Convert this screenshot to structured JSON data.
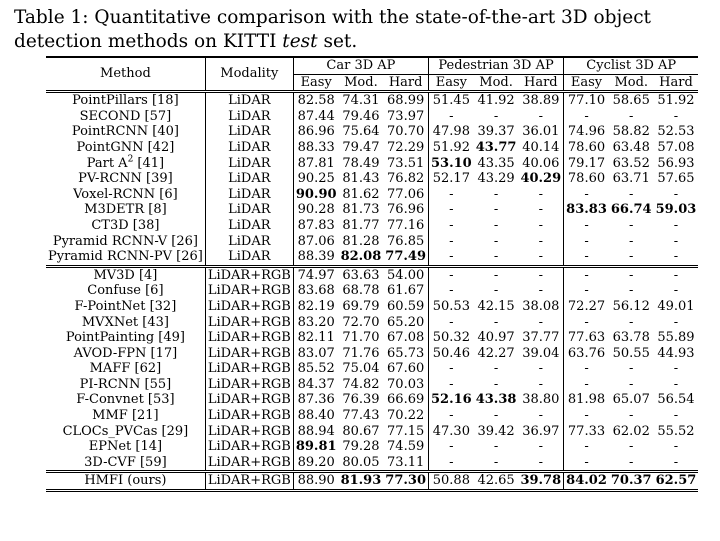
{
  "caption": {
    "prefix": "Table 1: Quantitative comparison with the state-of-the-art 3D object detection methods on KITTI ",
    "italic": "test",
    "suffix": " set."
  },
  "headers": {
    "method": "Method",
    "modality": "Modality",
    "car": "Car 3D AP",
    "pedestrian": "Pedestrian 3D AP",
    "cyclist": "Cyclist 3D AP",
    "sub": [
      "Easy",
      "Mod.",
      "Hard",
      "Easy",
      "Mod.",
      "Hard",
      "Easy",
      "Mod.",
      "Hard"
    ]
  },
  "groups": [
    {
      "rows": [
        {
          "method": "PointPillars [18]",
          "modality": "LiDAR",
          "values": [
            "82.58",
            "74.31",
            "68.99",
            "51.45",
            "41.92",
            "38.89",
            "77.10",
            "58.65",
            "51.92"
          ],
          "bold": []
        },
        {
          "method": "SECOND [57]",
          "modality": "LiDAR",
          "values": [
            "87.44",
            "79.46",
            "73.97",
            "-",
            "-",
            "-",
            "-",
            "-",
            "-"
          ],
          "bold": []
        },
        {
          "method": "PointRCNN [40]",
          "modality": "LiDAR",
          "values": [
            "86.96",
            "75.64",
            "70.70",
            "47.98",
            "39.37",
            "36.01",
            "74.96",
            "58.82",
            "52.53"
          ],
          "bold": []
        },
        {
          "method": "PointGNN [42]",
          "modality": "LiDAR",
          "values": [
            "88.33",
            "79.47",
            "72.29",
            "51.92",
            "43.77",
            "40.14",
            "78.60",
            "63.48",
            "57.08"
          ],
          "bold": [
            4
          ]
        },
        {
          "method": "Part A",
          "sup": "2",
          "method_suffix": " [41]",
          "modality": "LiDAR",
          "values": [
            "87.81",
            "78.49",
            "73.51",
            "53.10",
            "43.35",
            "40.06",
            "79.17",
            "63.52",
            "56.93"
          ],
          "bold": [
            3
          ]
        },
        {
          "method": "PV-RCNN [39]",
          "modality": "LiDAR",
          "values": [
            "90.25",
            "81.43",
            "76.82",
            "52.17",
            "43.29",
            "40.29",
            "78.60",
            "63.71",
            "57.65"
          ],
          "bold": [
            5
          ]
        },
        {
          "method": "Voxel-RCNN [6]",
          "modality": "LiDAR",
          "values": [
            "90.90",
            "81.62",
            "77.06",
            "-",
            "-",
            "-",
            "-",
            "-",
            "-"
          ],
          "bold": [
            0
          ]
        },
        {
          "method": "M3DETR [8]",
          "modality": "LiDAR",
          "values": [
            "90.28",
            "81.73",
            "76.96",
            "-",
            "-",
            "-",
            "83.83",
            "66.74",
            "59.03"
          ],
          "bold": [
            6,
            7,
            8
          ]
        },
        {
          "method": "CT3D [38]",
          "modality": "LiDAR",
          "values": [
            "87.83",
            "81.77",
            "77.16",
            "-",
            "-",
            "-",
            "-",
            "-",
            "-"
          ],
          "bold": []
        },
        {
          "method": "Pyramid RCNN-V [26]",
          "modality": "LiDAR",
          "values": [
            "87.06",
            "81.28",
            "76.85",
            "-",
            "-",
            "-",
            "-",
            "-",
            "-"
          ],
          "bold": []
        },
        {
          "method": "Pyramid RCNN-PV [26]",
          "modality": "LiDAR",
          "values": [
            "88.39",
            "82.08",
            "77.49",
            "-",
            "-",
            "-",
            "-",
            "-",
            "-"
          ],
          "bold": [
            1,
            2
          ]
        }
      ]
    },
    {
      "rows": [
        {
          "method": "MV3D [4]",
          "modality": "LiDAR+RGB",
          "values": [
            "74.97",
            "63.63",
            "54.00",
            "-",
            "-",
            "-",
            "-",
            "-",
            "-"
          ],
          "bold": []
        },
        {
          "method": "Confuse [6]",
          "modality": "LiDAR+RGB",
          "values": [
            "83.68",
            "68.78",
            "61.67",
            "-",
            "-",
            "-",
            "-",
            "-",
            "-"
          ],
          "bold": []
        },
        {
          "method": "F-PointNet [32]",
          "modality": "LiDAR+RGB",
          "values": [
            "82.19",
            "69.79",
            "60.59",
            "50.53",
            "42.15",
            "38.08",
            "72.27",
            "56.12",
            "49.01"
          ],
          "bold": []
        },
        {
          "method": "MVXNet [43]",
          "modality": "LiDAR+RGB",
          "values": [
            "83.20",
            "72.70",
            "65.20",
            "-",
            "-",
            "-",
            "-",
            "-",
            "-"
          ],
          "bold": []
        },
        {
          "method": "PointPainting [49]",
          "modality": "LiDAR+RGB",
          "values": [
            "82.11",
            "71.70",
            "67.08",
            "50.32",
            "40.97",
            "37.77",
            "77.63",
            "63.78",
            "55.89"
          ],
          "bold": []
        },
        {
          "method": "AVOD-FPN [17]",
          "modality": "LiDAR+RGB",
          "values": [
            "83.07",
            "71.76",
            "65.73",
            "50.46",
            "42.27",
            "39.04",
            "63.76",
            "50.55",
            "44.93"
          ],
          "bold": []
        },
        {
          "method": "MAFF [62]",
          "modality": "LiDAR+RGB",
          "values": [
            "85.52",
            "75.04",
            "67.60",
            "-",
            "-",
            "-",
            "-",
            "-",
            "-"
          ],
          "bold": []
        },
        {
          "method": "PI-RCNN [55]",
          "modality": "LiDAR+RGB",
          "values": [
            "84.37",
            "74.82",
            "70.03",
            "-",
            "-",
            "-",
            "-",
            "-",
            "-"
          ],
          "bold": []
        },
        {
          "method": "F-Convnet [53]",
          "modality": "LiDAR+RGB",
          "values": [
            "87.36",
            "76.39",
            "66.69",
            "52.16",
            "43.38",
            "38.80",
            "81.98",
            "65.07",
            "56.54"
          ],
          "bold": [
            3,
            4
          ]
        },
        {
          "method": "MMF [21]",
          "modality": "LiDAR+RGB",
          "values": [
            "88.40",
            "77.43",
            "70.22",
            "-",
            "-",
            "-",
            "-",
            "-",
            "-"
          ],
          "bold": []
        },
        {
          "method": "CLOCs_PVCas [29]",
          "modality": "LiDAR+RGB",
          "values": [
            "88.94",
            "80.67",
            "77.15",
            "47.30",
            "39.42",
            "36.97",
            "77.33",
            "62.02",
            "55.52"
          ],
          "bold": []
        },
        {
          "method": "EPNet [14]",
          "modality": "LiDAR+RGB",
          "values": [
            "89.81",
            "79.28",
            "74.59",
            "-",
            "-",
            "-",
            "-",
            "-",
            "-"
          ],
          "bold": [
            0
          ]
        },
        {
          "method": "3D-CVF [59]",
          "modality": "LiDAR+RGB",
          "values": [
            "89.20",
            "80.05",
            "73.11",
            "-",
            "-",
            "-",
            "-",
            "-",
            "-"
          ],
          "bold": []
        }
      ]
    }
  ],
  "ours": {
    "method": "HMFI (ours)",
    "modality": "LiDAR+RGB",
    "values": [
      "88.90",
      "81.93",
      "77.30",
      "50.88",
      "42.65",
      "39.78",
      "84.02",
      "70.37",
      "62.57"
    ],
    "bold": [
      1,
      2,
      5,
      6,
      7,
      8
    ]
  }
}
